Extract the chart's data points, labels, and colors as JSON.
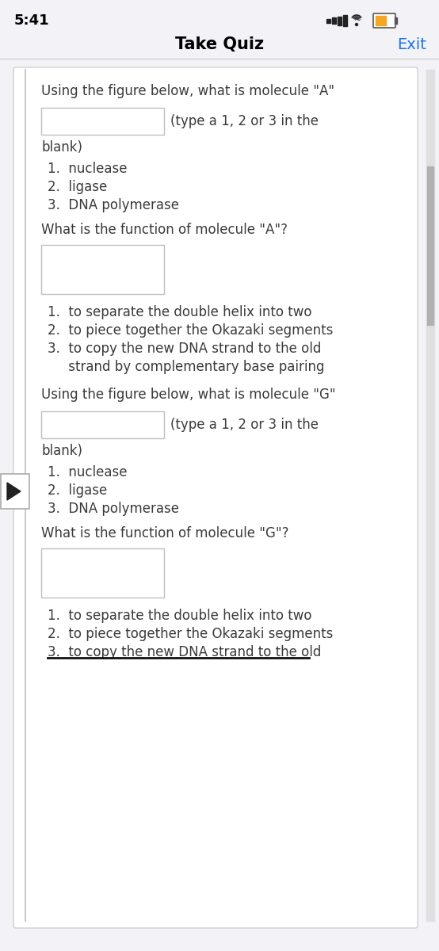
{
  "bg_color": "#f2f2f7",
  "card_color": "#ffffff",
  "status_bar_time": "5:41",
  "title": "Take Quiz",
  "title_color": "#000000",
  "exit_text": "Exit",
  "exit_color": "#1a73e8",
  "header_line_color": "#cccccc",
  "card_border_color": "#d0d0d0",
  "text_color": "#3a3a3a",
  "input_box_border": "#c0c0c0",
  "play_button_border": "#aaaaaa",
  "sections": [
    {
      "question": "Using the figure below, what is molecule \"A\"",
      "inline_suffix": "(type a 1, 2 or 3 in the",
      "continuation": "blank)",
      "choices": [
        "1.  nuclease",
        "2.  ligase",
        "3.  DNA polymerase"
      ],
      "function_question": "What is the function of molecule \"A\"?",
      "function_choices": [
        "1.  to separate the double helix into two",
        "2.  to piece together the Okazaki segments",
        "3.  to copy the new DNA strand to the old",
        "     strand by complementary base pairing"
      ],
      "has_play_button": false
    },
    {
      "question": "Using the figure below, what is molecule \"G\"",
      "inline_suffix": "(type a 1, 2 or 3 in the",
      "continuation": "blank)",
      "choices": [
        "1.  nuclease",
        "2.  ligase",
        "3.  DNA polymerase"
      ],
      "function_question": "What is the function of molecule \"G\"?",
      "function_choices": [
        "1.  to separate the double helix into two",
        "2.  to piece together the Okazaki segments",
        "3.  to copy the new DNA strand to the old"
      ],
      "has_play_button": true
    }
  ]
}
